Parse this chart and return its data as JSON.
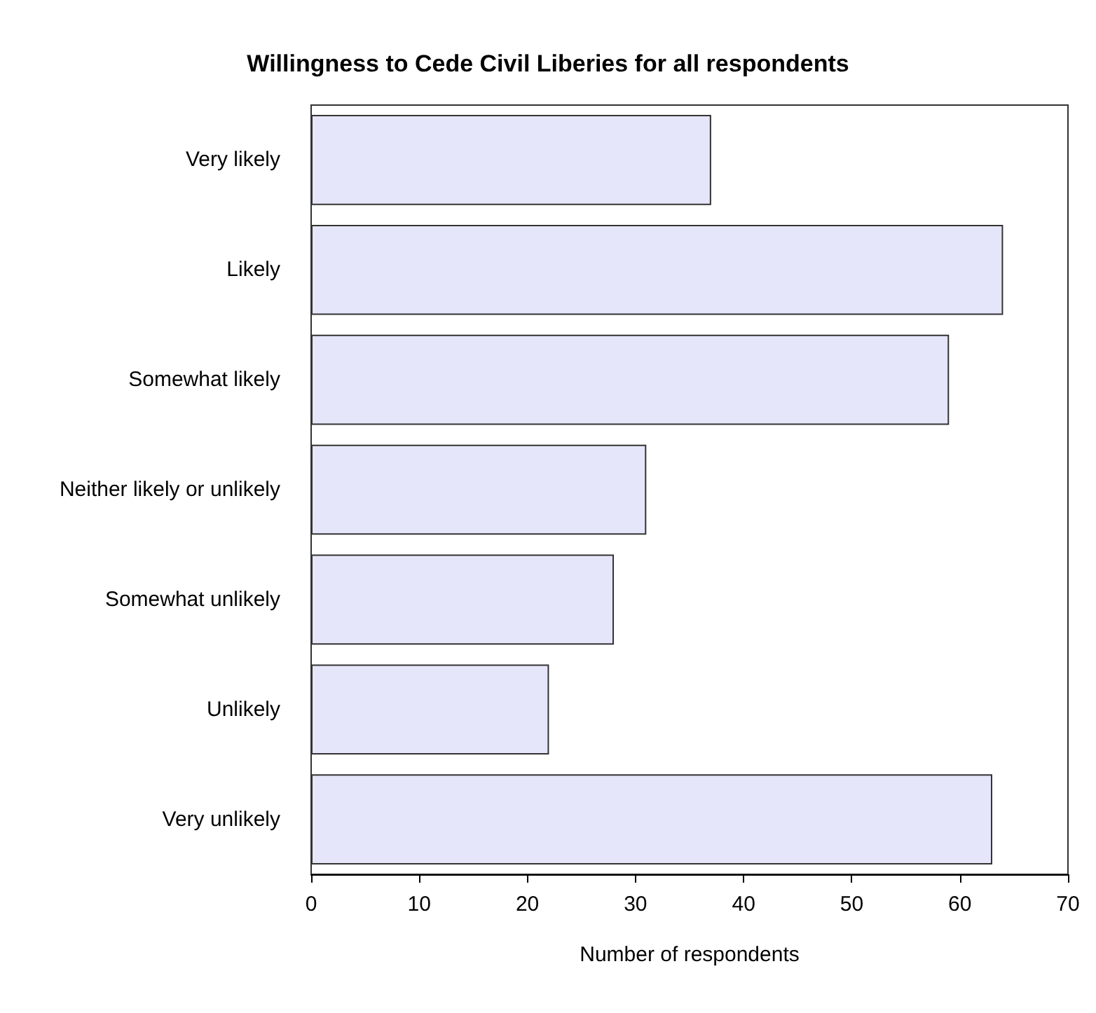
{
  "chart_data": {
    "type": "bar",
    "orientation": "horizontal",
    "title": "Willingness to Cede Civil Liberies for all respondents",
    "xlabel": "Number of respondents",
    "categories": [
      "Very likely",
      "Likely",
      "Somewhat likely",
      "Neither likely or unlikely",
      "Somewhat unlikely",
      "Unlikely",
      "Very unlikely"
    ],
    "values": [
      37,
      64,
      59,
      31,
      28,
      22,
      63
    ],
    "color": "#e6e6fa",
    "xlim": [
      0,
      70
    ],
    "xticks": [
      0,
      10,
      20,
      30,
      40,
      50,
      60,
      70
    ],
    "grid": false
  }
}
